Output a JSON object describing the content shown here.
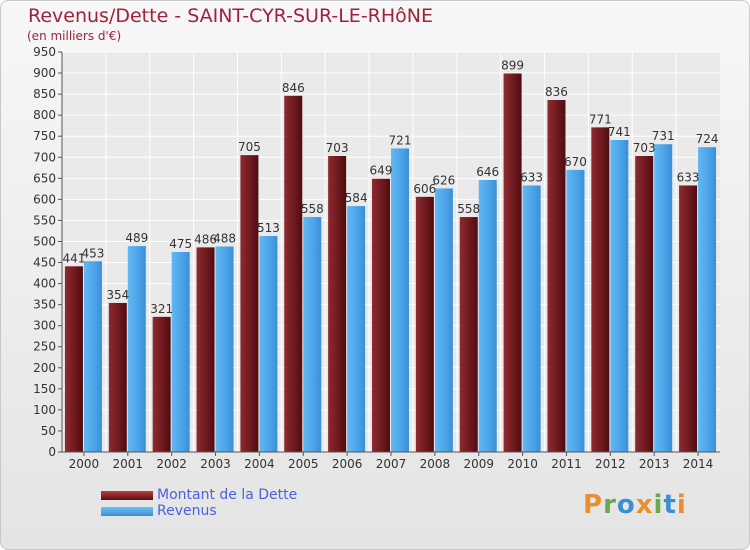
{
  "header": {
    "title": "Revenus/Dette - SAINT-CYR-SUR-LE-RHôNE",
    "subtitle": "(en milliers d'€)"
  },
  "legend": {
    "debt_label": "Montant de la Dette",
    "revenue_label": "Revenus"
  },
  "brand": {
    "text": "Proxiti"
  },
  "colors": {
    "debt": "#6e1a1e",
    "revenue": "#4aa3e8",
    "title": "#a0213a",
    "legend_text": "#4a62e0"
  },
  "chart_data": {
    "type": "bar",
    "title": "Revenus/Dette - SAINT-CYR-SUR-LE-RHôNE",
    "subtitle": "(en milliers d'€)",
    "categories": [
      "2000",
      "2001",
      "2002",
      "2003",
      "2004",
      "2005",
      "2006",
      "2007",
      "2008",
      "2009",
      "2010",
      "2011",
      "2012",
      "2013",
      "2014"
    ],
    "series": [
      {
        "name": "Montant de la Dette",
        "values": [
          441,
          354,
          321,
          486,
          705,
          846,
          703,
          649,
          606,
          558,
          899,
          836,
          771,
          703,
          633
        ]
      },
      {
        "name": "Revenus",
        "values": [
          453,
          489,
          475,
          488,
          513,
          558,
          584,
          721,
          626,
          646,
          633,
          670,
          741,
          731,
          724
        ]
      }
    ],
    "ylim": [
      0,
      950
    ],
    "yticks": [
      0,
      50,
      100,
      150,
      200,
      250,
      300,
      350,
      400,
      450,
      500,
      550,
      600,
      650,
      700,
      750,
      800,
      850,
      900,
      950
    ],
    "grid": true,
    "legend_position": "bottom-left"
  }
}
